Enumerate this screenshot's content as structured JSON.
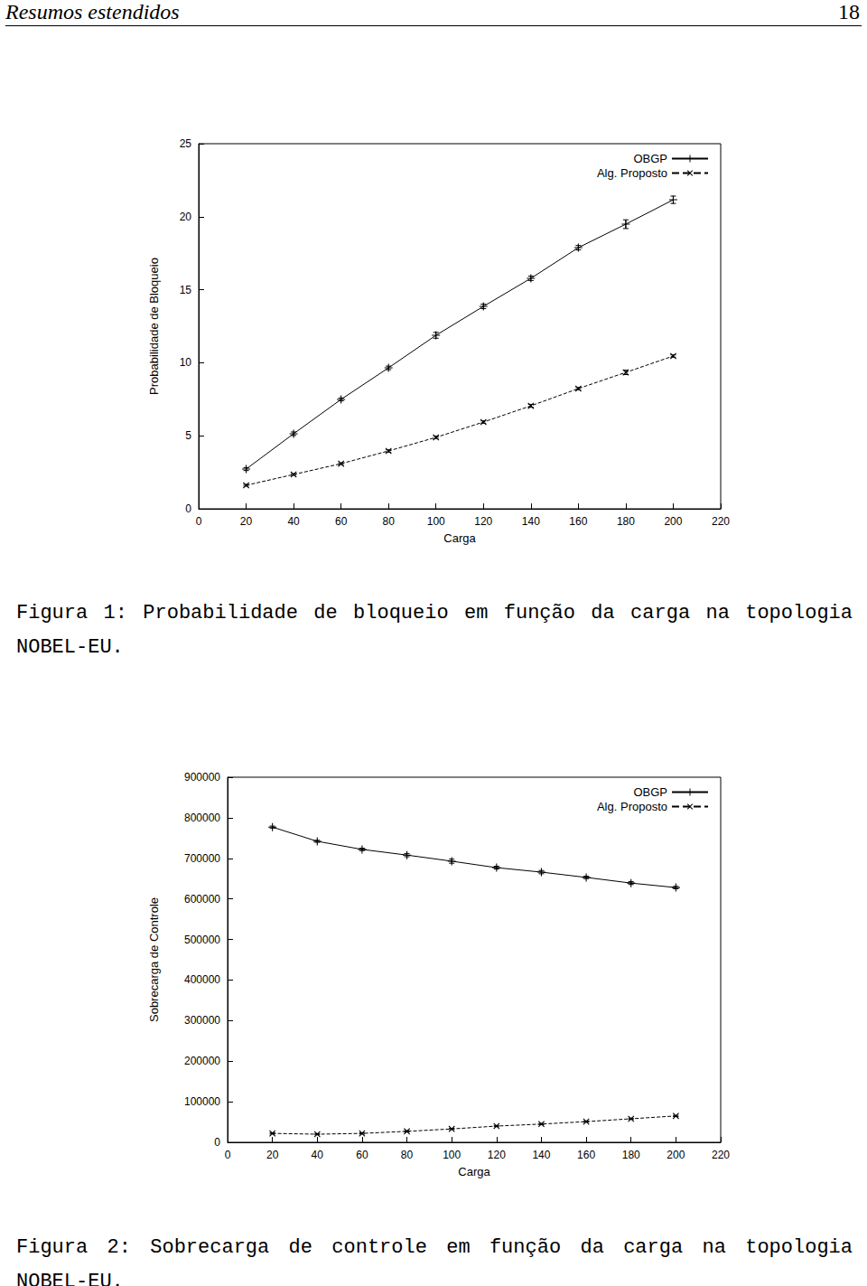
{
  "header": {
    "title": "Resumos estendidos",
    "page": 18
  },
  "chart_data": [
    {
      "type": "line",
      "x_label": "Carga",
      "y_label": "Probabilidade de Bloqueio",
      "x": [
        20,
        40,
        60,
        80,
        100,
        120,
        140,
        160,
        180,
        200
      ],
      "series": [
        {
          "name": "OBGP",
          "color": "#000000",
          "marker": "plus",
          "line_style": "solid",
          "values": [
            2.72,
            5.14,
            7.49,
            9.65,
            11.88,
            13.86,
            15.78,
            17.88,
            19.49,
            21.16
          ],
          "errors": [
            0.1,
            0.12,
            0.1,
            0.12,
            0.2,
            0.15,
            0.15,
            0.15,
            0.3,
            0.25
          ]
        },
        {
          "name": "Alg. Proposto",
          "color": "#000000",
          "marker": "cross",
          "line_style": "dashed",
          "values": [
            1.61,
            2.35,
            3.09,
            3.96,
            4.89,
            5.94,
            7.05,
            8.23,
            9.34,
            10.46
          ],
          "errors": [
            0.06,
            0.06,
            0.06,
            0.08,
            0.08,
            0.08,
            0.1,
            0.08,
            0.15,
            0.08
          ]
        }
      ],
      "xlim": [
        0,
        220
      ],
      "xticks": [
        0,
        20,
        40,
        60,
        80,
        100,
        120,
        140,
        160,
        180,
        200,
        220
      ],
      "ylim": [
        0,
        25
      ],
      "yticks": [
        0,
        5,
        10,
        15,
        20,
        25
      ],
      "grid": false,
      "legend": "top-right"
    },
    {
      "type": "line",
      "x_label": "Carga",
      "y_label": "Sobrecarga de Controle",
      "x": [
        20,
        40,
        60,
        80,
        100,
        120,
        140,
        160,
        180,
        200
      ],
      "series": [
        {
          "name": "OBGP",
          "color": "#000000",
          "marker": "plus",
          "line_style": "solid",
          "values": [
            777000,
            742000,
            722000,
            708000,
            693000,
            677000,
            666000,
            653000,
            639000,
            628000
          ],
          "errors": [
            2500,
            2500,
            3000,
            4000,
            5000,
            3500,
            4000,
            3000,
            3500,
            3000
          ]
        },
        {
          "name": "Alg. Proposto",
          "color": "#000000",
          "marker": "cross",
          "line_style": "dashed",
          "values": [
            22000,
            20000,
            22000,
            27000,
            33000,
            40000,
            45000,
            51000,
            58000,
            65000
          ],
          "errors": [
            1500,
            1500,
            1500,
            1500,
            1500,
            1500,
            1500,
            1500,
            1500,
            1500
          ]
        }
      ],
      "xlim": [
        0,
        220
      ],
      "xticks": [
        0,
        20,
        40,
        60,
        80,
        100,
        120,
        140,
        160,
        180,
        200,
        220
      ],
      "ylim": [
        0,
        900000
      ],
      "yticks": [
        0,
        100000,
        200000,
        300000,
        400000,
        500000,
        600000,
        700000,
        800000,
        900000
      ],
      "grid": false,
      "legend": "top-right"
    }
  ],
  "captions": [
    {
      "label": "Figura 1:",
      "text": "Probabilidade de bloqueio em função da carga na topologia NOBEL-EU."
    },
    {
      "label": "Figura 2:",
      "text": "Sobrecarga de controle em função da carga na topologia NOBEL-EU."
    }
  ]
}
